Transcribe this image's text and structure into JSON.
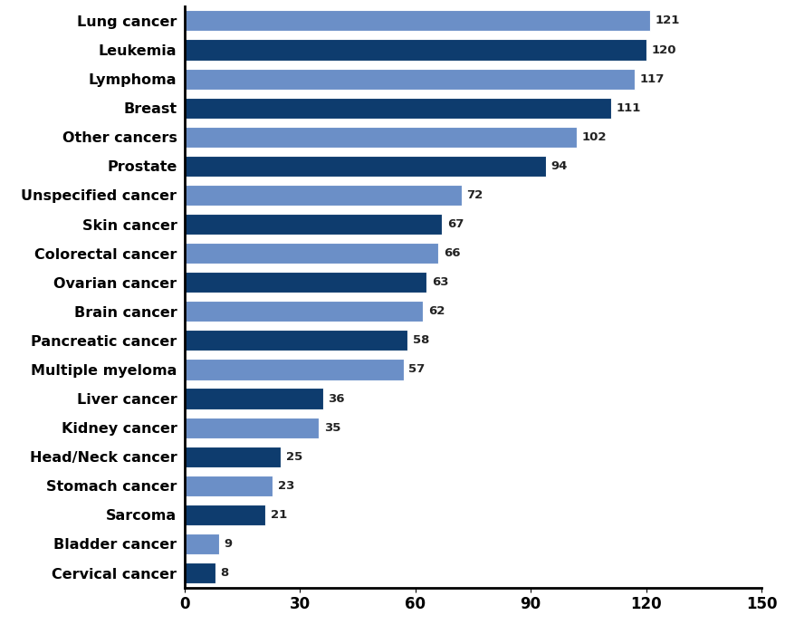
{
  "chart_data": {
    "type": "bar",
    "orientation": "horizontal",
    "categories": [
      "Lung cancer",
      "Leukemia",
      "Lymphoma",
      "Breast",
      "Other cancers",
      "Prostate",
      "Unspecified cancer",
      "Skin cancer",
      "Colorectal cancer",
      "Ovarian cancer",
      "Brain cancer",
      "Pancreatic cancer",
      "Multiple myeloma",
      "Liver cancer",
      "Kidney cancer",
      "Head/Neck cancer",
      "Stomach cancer",
      "Sarcoma",
      "Bladder cancer",
      "Cervical cancer"
    ],
    "values": [
      121,
      120,
      117,
      111,
      102,
      94,
      72,
      67,
      66,
      63,
      62,
      58,
      57,
      36,
      35,
      25,
      23,
      21,
      9,
      8
    ],
    "colors": [
      "#6b8fc7",
      "#0e3c6e",
      "#6b8fc7",
      "#0e3c6e",
      "#6b8fc7",
      "#0e3c6e",
      "#6b8fc7",
      "#0e3c6e",
      "#6b8fc7",
      "#0e3c6e",
      "#6b8fc7",
      "#0e3c6e",
      "#6b8fc7",
      "#0e3c6e",
      "#6b8fc7",
      "#0e3c6e",
      "#6b8fc7",
      "#0e3c6e",
      "#6b8fc7",
      "#0e3c6e"
    ],
    "xlim": [
      0,
      150
    ],
    "xticks": [
      0,
      30,
      60,
      90,
      120,
      150
    ],
    "grid": false,
    "data_labels": true
  }
}
